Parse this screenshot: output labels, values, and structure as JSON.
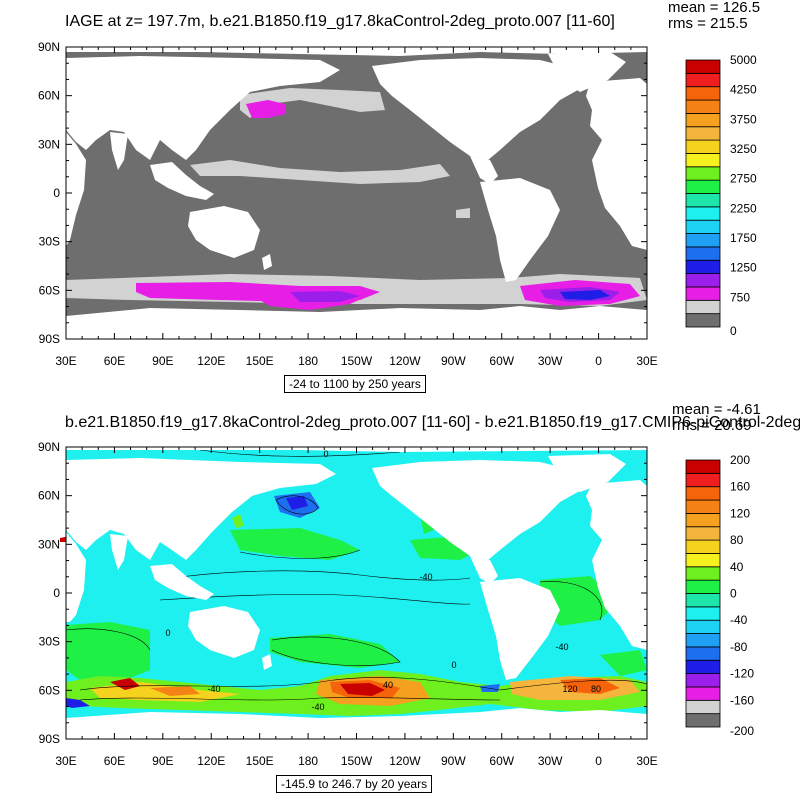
{
  "chart_data": [
    {
      "type": "heatmap",
      "title": "IAGE at z= 197.7m, b.e21.B1850.f19_g17.8kaControl-2deg_proto.007 [11-60]",
      "stats": {
        "mean": "mean = 126.5",
        "rms": "rms = 215.5"
      },
      "range_label": "-24 to 1100 by 250 years",
      "x_ticks": [
        "30E",
        "60E",
        "90E",
        "120E",
        "150E",
        "180",
        "150W",
        "120W",
        "90W",
        "60W",
        "30W",
        "0",
        "30E"
      ],
      "y_ticks": [
        "90N",
        "60N",
        "30N",
        "0",
        "30S",
        "60S",
        "90S"
      ],
      "colorbar": {
        "colors": [
          "#6e6e6e",
          "#d2d2d2",
          "#e61ee6",
          "#9b1eeb",
          "#1e1ee6",
          "#1e6ef0",
          "#1ea0f5",
          "#1ed2f5",
          "#1ef0f0",
          "#1ee6aa",
          "#1ef046",
          "#6ef01e",
          "#f5f01e",
          "#f5d21e",
          "#f5b43c",
          "#f5a01e",
          "#f58214",
          "#f5640a",
          "#f01e1e",
          "#c80000"
        ],
        "labels": [
          "0",
          "750",
          "1250",
          "1750",
          "2250",
          "2750",
          "3250",
          "3750",
          "4250",
          "5000"
        ]
      },
      "land_color": "#ffffff",
      "ocean_base_color": "#6e6e6e"
    },
    {
      "type": "heatmap",
      "title": "b.e21.B1850.f19_g17.8kaControl-2deg_proto.007 [11-60] - b.e21.B1850.f19_g17.CMIP6-piControl-2deg",
      "stats": {
        "mean": "mean = -4.61",
        "rms": "rms = 20.69"
      },
      "range_label": "-145.9 to 246.7 by 20 years",
      "x_ticks": [
        "30E",
        "60E",
        "90E",
        "120E",
        "150E",
        "180",
        "150W",
        "120W",
        "90W",
        "60W",
        "30W",
        "0",
        "30E"
      ],
      "y_ticks": [
        "90N",
        "60N",
        "30N",
        "0",
        "30S",
        "60S",
        "90S"
      ],
      "contour_labels": [
        "0",
        "-40",
        "0",
        "-40",
        "0",
        "-40",
        "40",
        "-40",
        "120",
        "80"
      ],
      "colorbar": {
        "colors": [
          "#6e6e6e",
          "#d2d2d2",
          "#e61ee6",
          "#9b1eeb",
          "#1e1ee6",
          "#1e6ef0",
          "#1ea0f5",
          "#1ed2f5",
          "#1ef0f0",
          "#1ee6aa",
          "#1ef046",
          "#6ef01e",
          "#f5f01e",
          "#f5d21e",
          "#f5b43c",
          "#f5a01e",
          "#f58214",
          "#f5640a",
          "#f01e1e",
          "#c80000"
        ],
        "labels": [
          "-200",
          "-160",
          "-120",
          "-80",
          "-40",
          "0",
          "40",
          "80",
          "120",
          "160",
          "200"
        ]
      },
      "land_color": "#ffffff",
      "ocean_base_color": "#1ef0f0"
    }
  ]
}
